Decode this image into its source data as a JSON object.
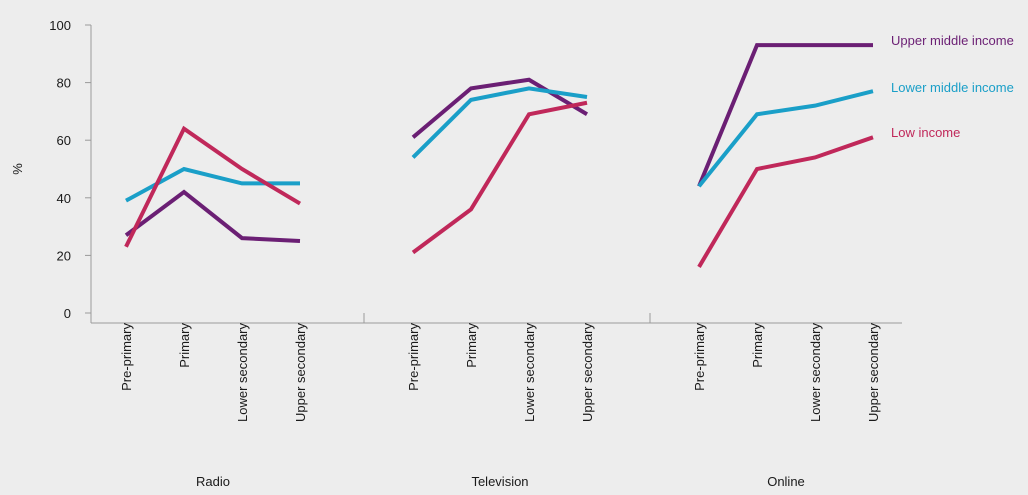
{
  "chart_data": {
    "type": "line",
    "ylabel": "%",
    "ylim": [
      0,
      100
    ],
    "yticks": [
      0,
      20,
      40,
      60,
      80,
      100
    ],
    "grid": false,
    "legend_placement": "right, at line ends",
    "groups": [
      {
        "name": "Radio",
        "categories": [
          "Pre-primary",
          "Primary",
          "Lower secondary",
          "Upper secondary"
        ],
        "series": [
          {
            "name": "Upper middle income",
            "color": "#6b1f74",
            "values": [
              27,
              42,
              26,
              25
            ]
          },
          {
            "name": "Lower middle income",
            "color": "#1a9fc8",
            "values": [
              39,
              50,
              45,
              45
            ]
          },
          {
            "name": "Low income",
            "color": "#c0285a",
            "values": [
              23,
              64,
              50,
              38
            ]
          }
        ]
      },
      {
        "name": "Television",
        "categories": [
          "Pre-primary",
          "Primary",
          "Lower secondary",
          "Upper secondary"
        ],
        "series": [
          {
            "name": "Upper middle income",
            "color": "#6b1f74",
            "values": [
              61,
              78,
              81,
              69
            ]
          },
          {
            "name": "Lower middle income",
            "color": "#1a9fc8",
            "values": [
              54,
              74,
              78,
              75
            ]
          },
          {
            "name": "Low income",
            "color": "#c0285a",
            "values": [
              21,
              36,
              69,
              73
            ]
          }
        ]
      },
      {
        "name": "Online",
        "categories": [
          "Pre-primary",
          "Primary",
          "Lower secondary",
          "Upper secondary"
        ],
        "series": [
          {
            "name": "Upper middle income",
            "color": "#6b1f74",
            "values": [
              44,
              93,
              93,
              93
            ]
          },
          {
            "name": "Lower middle income",
            "color": "#1a9fc8",
            "values": [
              44,
              69,
              72,
              77
            ]
          },
          {
            "name": "Low income",
            "color": "#c0285a",
            "values": [
              16,
              50,
              54,
              61
            ]
          }
        ]
      }
    ],
    "legend": [
      {
        "name": "Upper middle income",
        "color": "#6b1f74"
      },
      {
        "name": "Lower middle income",
        "color": "#1a9fc8"
      },
      {
        "name": "Low income",
        "color": "#c0285a"
      }
    ]
  }
}
